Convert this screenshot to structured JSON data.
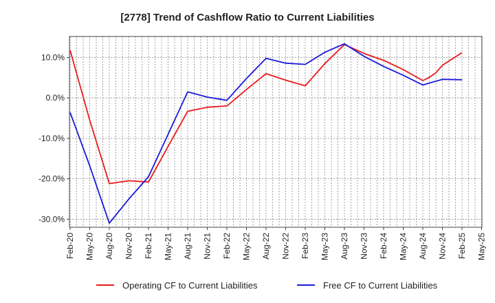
{
  "chart_data": {
    "type": "line",
    "title": "[2778]  Trend of Cashflow Ratio to Current Liabilities",
    "xlabel": "",
    "ylabel": "",
    "x_tick_labels": [
      "Feb-20",
      "May-20",
      "Aug-20",
      "Nov-20",
      "Feb-21",
      "May-21",
      "Aug-21",
      "Nov-21",
      "Feb-22",
      "May-22",
      "Aug-22",
      "Nov-22",
      "Feb-23",
      "May-23",
      "Aug-23",
      "Nov-23",
      "Feb-24",
      "May-24",
      "Aug-24",
      "Nov-24",
      "Feb-25",
      "May-25"
    ],
    "y_ticks": [
      10,
      0,
      -10,
      -20,
      -30
    ],
    "y_tick_labels": [
      "10.0%",
      "0.0%",
      "-10.0%",
      "-20.0%",
      "-30.0%"
    ],
    "ylim": [
      -32,
      15.2
    ],
    "grid": true,
    "legend_position": "bottom",
    "series": [
      {
        "name": "Operating CF to Current Liabilities",
        "color": "#e8191a",
        "x": [
          "Feb-20",
          "May-20",
          "Aug-20",
          "Nov-20",
          "Feb-21",
          "May-21",
          "Aug-21",
          "Nov-21",
          "Feb-22",
          "May-22",
          "Aug-22",
          "Nov-22",
          "Feb-23",
          "May-23",
          "Aug-23",
          "Nov-23",
          "Feb-24",
          "May-24",
          "Aug-24",
          "Sep-24",
          "Oct-24",
          "Nov-24",
          "Feb-25"
        ],
        "values": [
          11.8,
          -5.5,
          -21.2,
          -20.5,
          -20.8,
          -12.0,
          -3.3,
          -2.3,
          -2.0,
          2.1,
          6.0,
          4.4,
          3.0,
          8.5,
          13.2,
          11.0,
          9.3,
          7.0,
          4.3,
          5.1,
          6.2,
          8.1,
          11.2
        ]
      },
      {
        "name": "Free CF to Current Liabilities",
        "color": "#1a1ad9",
        "x": [
          "Feb-20",
          "May-20",
          "Aug-20",
          "Nov-20",
          "Feb-21",
          "May-21",
          "Aug-21",
          "Nov-21",
          "Feb-22",
          "May-22",
          "Aug-22",
          "Nov-22",
          "Feb-23",
          "May-23",
          "Aug-23",
          "Nov-23",
          "Feb-24",
          "May-24",
          "Aug-24",
          "Nov-24",
          "Feb-25"
        ],
        "values": [
          -3.6,
          -16.8,
          -31.0,
          -25.0,
          -19.5,
          -9.0,
          1.5,
          0.2,
          -0.6,
          4.8,
          9.8,
          8.6,
          8.3,
          11.3,
          13.4,
          10.3,
          7.8,
          5.6,
          3.2,
          4.6,
          4.5
        ]
      }
    ]
  }
}
